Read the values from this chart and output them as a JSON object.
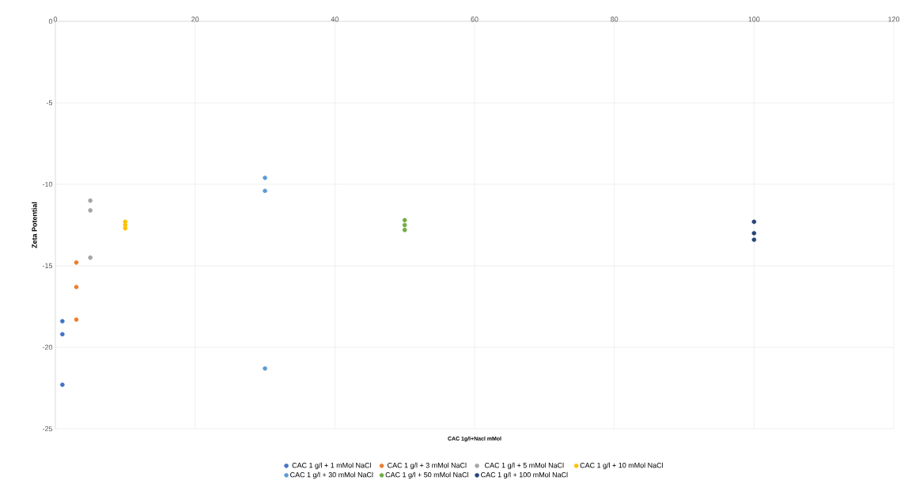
{
  "chart_data": {
    "type": "scatter",
    "xlabel": "CAC 1g/l+Nacl mMol",
    "ylabel": "Zeta Potential",
    "xlim": [
      0,
      120
    ],
    "xticks": [
      0,
      20,
      40,
      60,
      80,
      100,
      120
    ],
    "ylim": [
      -25,
      0
    ],
    "yticks": [
      -25,
      -20,
      -15,
      -10,
      -5,
      0
    ],
    "grid": true,
    "legend": "bottom",
    "marker": "circle",
    "series": [
      {
        "name": "CAC 1 g/l + 1 mMol NaCl",
        "color": "#4472c4",
        "x": [
          1,
          1,
          1
        ],
        "values": [
          -18.4,
          -19.2,
          -22.3
        ]
      },
      {
        "name": "CAC 1 g/l + 3 mMol NaCl",
        "color": "#ed7d31",
        "x": [
          3,
          3,
          3
        ],
        "values": [
          -14.8,
          -16.3,
          -18.3
        ]
      },
      {
        "name": "CAC 1 g/l + 5 mMol NaCl",
        "color": "#a5a5a5",
        "x": [
          5,
          5,
          5
        ],
        "values": [
          -11.0,
          -11.6,
          -14.5
        ]
      },
      {
        "name": "CAC 1 g/l + 10 mMol NaCl",
        "color": "#ffc000",
        "x": [
          10,
          10,
          10
        ],
        "values": [
          -12.3,
          -12.5,
          -12.7
        ]
      },
      {
        "name": "CAC 1 g/l + 30 mMol NaCl",
        "color": "#5b9bd5",
        "x": [
          30,
          30,
          30
        ],
        "values": [
          -9.6,
          -10.4,
          -21.3
        ]
      },
      {
        "name": "CAC 1 g/l + 50 mMol NaCl",
        "color": "#70ad47",
        "x": [
          50,
          50,
          50
        ],
        "values": [
          -12.2,
          -12.5,
          -12.8
        ]
      },
      {
        "name": "CAC 1 g/l + 100 mMol NaCl",
        "color": "#264478",
        "x": [
          100,
          100,
          100
        ],
        "values": [
          -12.3,
          -13.0,
          -13.4
        ]
      }
    ]
  }
}
